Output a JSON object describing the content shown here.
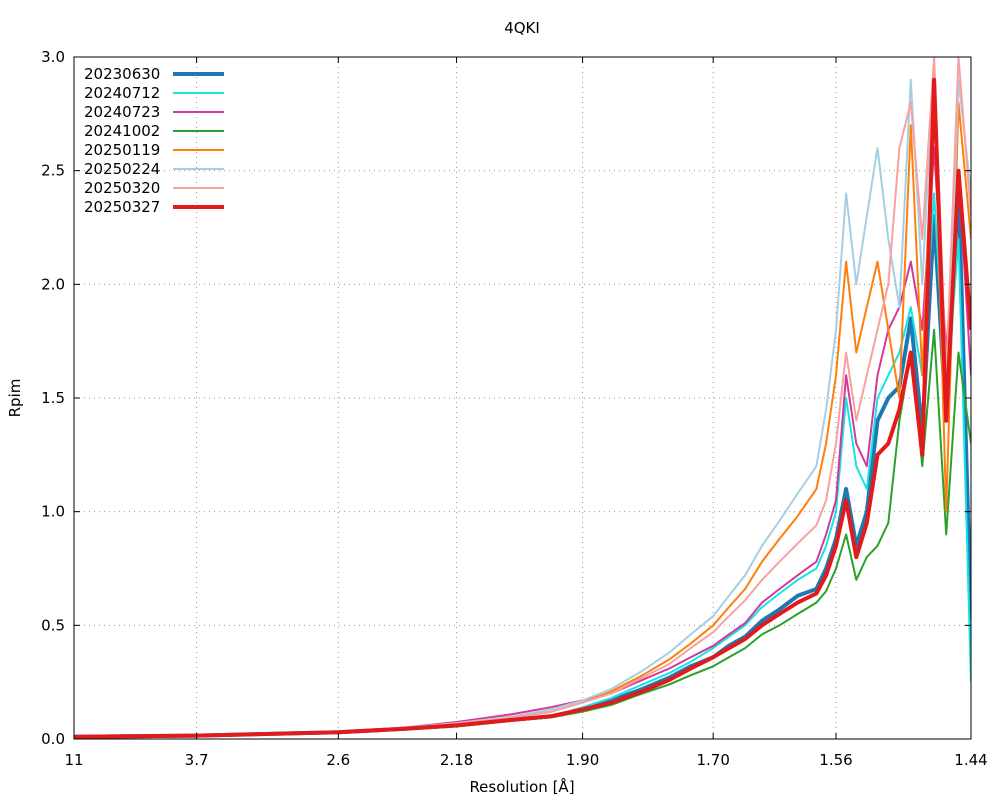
{
  "chart_data": {
    "type": "line",
    "title": "4QKI",
    "xlabel": "Resolution [Å]",
    "ylabel": "Rpim",
    "x_scale": "inverse-square",
    "xlim": [
      11.0,
      1.44
    ],
    "ylim": [
      0,
      3.0
    ],
    "grid": true,
    "legend_position": "top-left",
    "x_ticks": [
      "11",
      "3.7",
      "2.6",
      "2.18",
      "1.90",
      "1.70",
      "1.56",
      "1.44"
    ],
    "y_ticks": [
      "0.0",
      "0.5",
      "1.0",
      "1.5",
      "2.0",
      "2.5",
      "3.0"
    ],
    "x": [
      11.0,
      3.7,
      2.6,
      2.34,
      2.18,
      2.04,
      1.96,
      1.9,
      1.85,
      1.8,
      1.76,
      1.73,
      1.7,
      1.68,
      1.66,
      1.64,
      1.62,
      1.6,
      1.58,
      1.57,
      1.56,
      1.55,
      1.54,
      1.53,
      1.52,
      1.51,
      1.5,
      1.49,
      1.48,
      1.47,
      1.46,
      1.45,
      1.44
    ],
    "series": [
      {
        "name": "20230630",
        "color": "#1f77b4",
        "width": 4,
        "values": [
          0.01,
          0.015,
          0.03,
          0.045,
          0.06,
          0.085,
          0.1,
          0.13,
          0.17,
          0.22,
          0.27,
          0.32,
          0.36,
          0.41,
          0.45,
          0.52,
          0.57,
          0.63,
          0.66,
          0.75,
          0.88,
          1.1,
          0.85,
          1.0,
          1.4,
          1.5,
          1.55,
          1.85,
          1.35,
          2.3,
          1.4,
          2.45,
          0.52
        ]
      },
      {
        "name": "20240712",
        "color": "#17e3e3",
        "width": 2,
        "values": [
          0.01,
          0.015,
          0.03,
          0.045,
          0.06,
          0.085,
          0.1,
          0.14,
          0.18,
          0.24,
          0.29,
          0.34,
          0.4,
          0.45,
          0.5,
          0.58,
          0.64,
          0.7,
          0.75,
          0.85,
          1.0,
          1.5,
          1.2,
          1.1,
          1.5,
          1.6,
          1.7,
          1.9,
          1.6,
          2.4,
          1.5,
          2.2,
          0.25
        ]
      },
      {
        "name": "20240723",
        "color": "#d1399b",
        "width": 2,
        "values": [
          0.01,
          0.016,
          0.032,
          0.05,
          0.075,
          0.11,
          0.14,
          0.17,
          0.2,
          0.26,
          0.31,
          0.36,
          0.41,
          0.46,
          0.51,
          0.6,
          0.66,
          0.72,
          0.78,
          0.9,
          1.05,
          1.6,
          1.3,
          1.2,
          1.6,
          1.8,
          1.9,
          2.1,
          1.8,
          2.6,
          1.7,
          2.5,
          1.6
        ]
      },
      {
        "name": "20241002",
        "color": "#2ca02c",
        "width": 2,
        "values": [
          0.01,
          0.014,
          0.028,
          0.04,
          0.055,
          0.08,
          0.095,
          0.12,
          0.15,
          0.2,
          0.24,
          0.28,
          0.32,
          0.36,
          0.4,
          0.46,
          0.5,
          0.55,
          0.6,
          0.65,
          0.75,
          0.9,
          0.7,
          0.8,
          0.85,
          0.95,
          1.4,
          1.7,
          1.2,
          1.8,
          0.9,
          1.7,
          1.3
        ]
      },
      {
        "name": "20250119",
        "color": "#ff7f0e",
        "width": 2,
        "values": [
          0.01,
          0.016,
          0.03,
          0.045,
          0.065,
          0.095,
          0.12,
          0.16,
          0.21,
          0.28,
          0.35,
          0.42,
          0.5,
          0.58,
          0.66,
          0.78,
          0.88,
          0.98,
          1.1,
          1.3,
          1.6,
          2.1,
          1.7,
          1.9,
          2.1,
          1.8,
          1.5,
          2.7,
          1.6,
          2.9,
          1.0,
          2.8,
          2.2
        ]
      },
      {
        "name": "20250224",
        "color": "#a6cee3",
        "width": 2,
        "values": [
          0.01,
          0.017,
          0.032,
          0.05,
          0.07,
          0.1,
          0.13,
          0.17,
          0.22,
          0.3,
          0.38,
          0.46,
          0.54,
          0.63,
          0.72,
          0.85,
          0.96,
          1.08,
          1.2,
          1.45,
          1.8,
          2.4,
          2.0,
          2.3,
          2.6,
          2.2,
          1.9,
          2.9,
          2.0,
          3.0,
          1.4,
          2.9,
          2.4
        ]
      },
      {
        "name": "20250320",
        "color": "#f7a1a1",
        "width": 2,
        "values": [
          0.01,
          0.016,
          0.031,
          0.048,
          0.068,
          0.095,
          0.12,
          0.16,
          0.2,
          0.27,
          0.33,
          0.4,
          0.47,
          0.54,
          0.61,
          0.7,
          0.78,
          0.86,
          0.94,
          1.05,
          1.3,
          1.7,
          1.4,
          1.6,
          1.8,
          2.0,
          2.6,
          2.8,
          2.2,
          3.0,
          1.6,
          3.0,
          2.3
        ]
      },
      {
        "name": "20250327",
        "color": "#e31a1c",
        "width": 4,
        "values": [
          0.01,
          0.015,
          0.03,
          0.045,
          0.06,
          0.085,
          0.1,
          0.13,
          0.16,
          0.21,
          0.26,
          0.31,
          0.36,
          0.4,
          0.44,
          0.5,
          0.55,
          0.6,
          0.64,
          0.72,
          0.85,
          1.05,
          0.8,
          0.95,
          1.25,
          1.3,
          1.45,
          1.7,
          1.25,
          2.9,
          1.4,
          2.5,
          1.8
        ]
      }
    ]
  }
}
